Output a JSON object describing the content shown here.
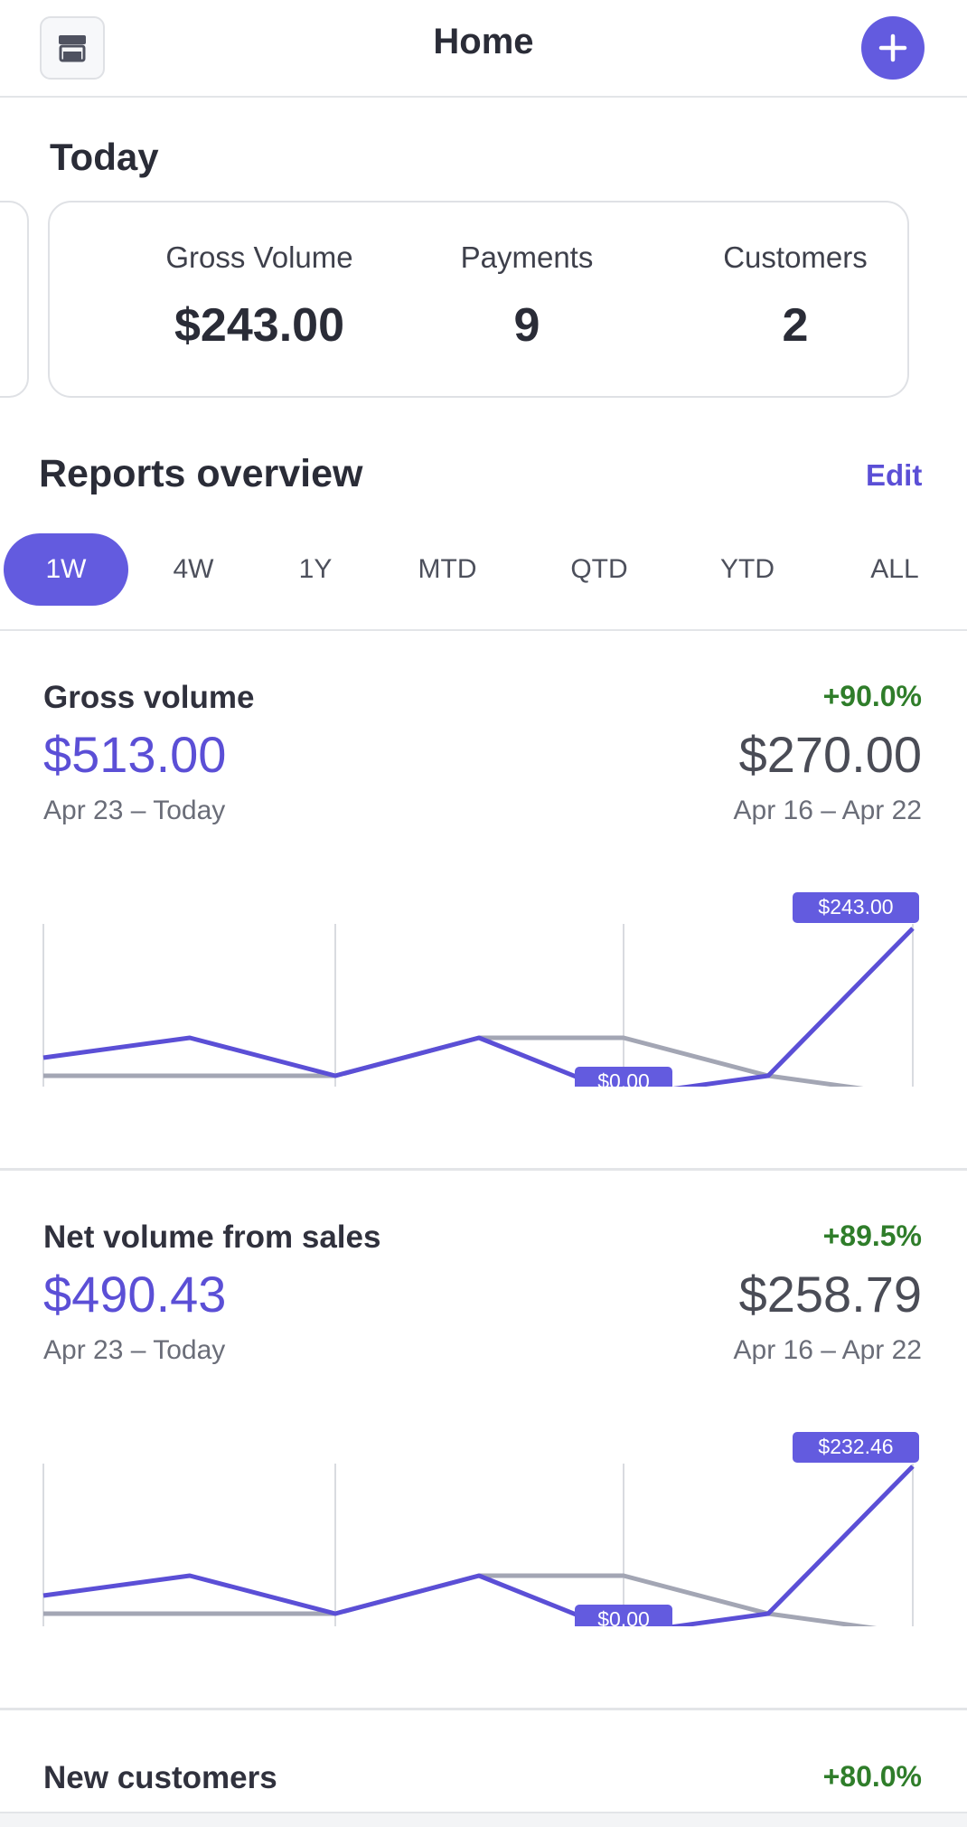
{
  "header": {
    "title": "Home",
    "left_icon": "store-icon",
    "right_icon": "plus-icon"
  },
  "today": {
    "title": "Today",
    "stats": [
      {
        "label": "Gross Volume",
        "value": "$243.00"
      },
      {
        "label": "Payments",
        "value": "9"
      },
      {
        "label": "Customers",
        "value": "2"
      }
    ]
  },
  "reports": {
    "title": "Reports overview",
    "edit_label": "Edit",
    "tabs": [
      "1W",
      "4W",
      "1Y",
      "MTD",
      "QTD",
      "YTD",
      "ALL"
    ],
    "active_tab": "1W"
  },
  "metrics": [
    {
      "name": "Gross volume",
      "change": "+90.0%",
      "current": "$513.00",
      "previous": "$270.00",
      "current_range": "Apr 23 – Today",
      "previous_range": "Apr 16 – Apr 22",
      "max_label": "$243.00",
      "min_label": "$0.00"
    },
    {
      "name": "Net volume from sales",
      "change": "+89.5%",
      "current": "$490.43",
      "previous": "$258.79",
      "current_range": "Apr 23 – Today",
      "previous_range": "Apr 16 – Apr 22",
      "max_label": "$232.46",
      "min_label": "$0.00"
    },
    {
      "name": "New customers",
      "change": "+80.0%"
    }
  ],
  "colors": {
    "accent": "#635bdf",
    "previous_series": "#a3a6b4",
    "positive": "#2f7d2a"
  }
}
